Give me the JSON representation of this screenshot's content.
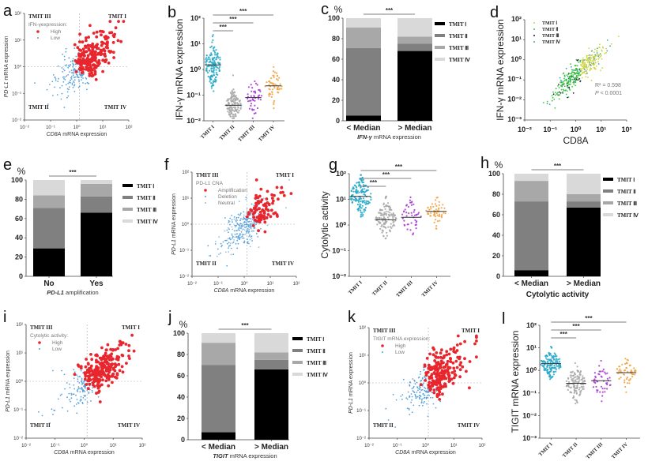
{
  "chart_data": [
    {
      "panel": "a",
      "type": "scatter",
      "style": "quadrant",
      "xlabel_gene": "CD8A",
      "xlabel_rest": " mRNA expression",
      "ylabel_gene": "PD-L1",
      "ylabel_rest": " mRNA expression",
      "x_ticks": [
        "10⁻²",
        "10⁻¹",
        "10⁰",
        "10¹",
        "10²"
      ],
      "xlim_log10": [
        -2,
        2
      ],
      "y_ticks": [
        "10²",
        "10¹",
        "10⁰",
        "10⁻¹",
        "10⁻²"
      ],
      "ylim_log10": [
        -2,
        2
      ],
      "threshold_log10": {
        "x": 0.1,
        "y": 0
      },
      "quadrants": {
        "top_left": "TMIT III",
        "top_right": "TMIT I",
        "bottom_left": "TMIT II",
        "bottom_right": "TMIT IV"
      },
      "legend_title": "IFN-γexpression:",
      "series": [
        {
          "name": "High",
          "color": "#e8262e"
        },
        {
          "name": "Low",
          "color": "#5aa2dc"
        }
      ],
      "distribution": {
        "n": 360,
        "x_log_mean": 0.3,
        "x_log_sd": 0.55,
        "y_log_mean": 0.15,
        "y_log_sd": 0.4,
        "slope": 0.7,
        "seed": 11
      }
    },
    {
      "panel": "b",
      "type": "dot",
      "ylabel": "IFN-γ mRNA expression",
      "y_ticks": [
        "10²",
        "10¹",
        "10⁰",
        "10⁻¹",
        "10⁻²"
      ],
      "ylim_log10": [
        -2,
        2
      ],
      "categories": [
        "TMIT I",
        "TMIT II",
        "TMIT III",
        "TMIT IV"
      ],
      "medians": [
        1.5,
        0.04,
        0.08,
        0.23
      ],
      "log_sd": [
        0.45,
        0.3,
        0.4,
        0.35
      ],
      "n": [
        150,
        130,
        45,
        55
      ],
      "colors": [
        "#2aaac8",
        "#a8a8a8",
        "#a63bd2",
        "#f2a444"
      ],
      "significance": [
        {
          "from": 0,
          "to": 1,
          "label": "***"
        },
        {
          "from": 0,
          "to": 2,
          "label": "***"
        },
        {
          "from": 0,
          "to": 3,
          "label": "***"
        }
      ],
      "seed": 21
    },
    {
      "panel": "c",
      "type": "bar",
      "stacked": true,
      "unit": "%",
      "categories": [
        "< Median",
        "> Median"
      ],
      "xlabel_gene": "IFN-γ",
      "xlabel_rest": " mRNA expression",
      "y_ticks": [
        "0",
        "20",
        "40",
        "60",
        "80",
        "100"
      ],
      "ylim": [
        0,
        100
      ],
      "series": [
        {
          "name": "TMIT Ⅰ",
          "color": "#000000",
          "values": [
            5,
            68
          ]
        },
        {
          "name": "TMIT Ⅱ",
          "color": "#808080",
          "values": [
            66,
            7
          ]
        },
        {
          "name": "TMIT Ⅲ",
          "color": "#a8a8a8",
          "values": [
            20,
            7
          ]
        },
        {
          "name": "TMIT Ⅳ",
          "color": "#d9d9d9",
          "values": [
            9,
            18
          ]
        }
      ],
      "significance": "***"
    },
    {
      "panel": "d",
      "type": "scatter",
      "style": "groups",
      "xlabel": "CD8A",
      "ylabel": "IFN-γ mRNA expression",
      "x_ticks": [
        "10⁻²",
        "10⁻¹",
        "10⁰",
        "10¹",
        "10²"
      ],
      "xlim_log10": [
        -2,
        2
      ],
      "y_ticks": [
        "10²",
        "10¹",
        "10⁰",
        "10⁻¹",
        "10⁻²",
        "10⁻³"
      ],
      "ylim_log10": [
        -3,
        2
      ],
      "series": [
        {
          "name": "TMIT Ⅰ",
          "color": "#cfd23a"
        },
        {
          "name": "TMIT Ⅱ",
          "color": "#38c43c"
        },
        {
          "name": "TMIT Ⅲ",
          "color": "#1c1c3c"
        },
        {
          "name": "TMIT Ⅳ",
          "color": "#3aa6a0"
        }
      ],
      "annotation": {
        "r2": "R² = 0.598",
        "p_sym": "P",
        "p_rest": " < 0.0001"
      },
      "distribution": {
        "n": 360,
        "x_log_mean": 0.1,
        "x_log_sd": 0.55,
        "y_intercept_log": -0.75,
        "slope": 1.15,
        "noise_sd": 0.3,
        "seed": 31
      }
    },
    {
      "panel": "e",
      "type": "bar",
      "stacked": true,
      "unit": "%",
      "categories": [
        "No",
        "Yes"
      ],
      "xlabel_gene": "PD-L1",
      "xlabel_rest": " amplification",
      "y_ticks": [
        "0",
        "20",
        "40",
        "60",
        "80",
        "100"
      ],
      "ylim": [
        0,
        100
      ],
      "series": [
        {
          "name": "TMIT Ⅰ",
          "color": "#000000",
          "values": [
            29,
            66
          ]
        },
        {
          "name": "TMIT Ⅱ",
          "color": "#808080",
          "values": [
            42,
            17
          ]
        },
        {
          "name": "TMIT Ⅲ",
          "color": "#a8a8a8",
          "values": [
            13,
            13
          ]
        },
        {
          "name": "TMIT Ⅳ",
          "color": "#d9d9d9",
          "values": [
            16,
            4
          ]
        }
      ],
      "significance": "***"
    },
    {
      "panel": "f",
      "type": "scatter",
      "style": "quadrant",
      "xlabel_gene": "CD8A",
      "xlabel_rest": " mRNA expression",
      "ylabel_gene": "PD-L1",
      "ylabel_rest": " mRNA expression",
      "x_ticks": [
        "10⁻²",
        "10⁻¹",
        "10⁰",
        "10¹",
        "10²"
      ],
      "xlim_log10": [
        -2,
        2
      ],
      "y_ticks": [
        "10²",
        "10¹",
        "10⁰",
        "10⁻¹",
        "10⁻²"
      ],
      "ylim_log10": [
        -2,
        2
      ],
      "threshold_log10": {
        "x": 0.1,
        "y": 0
      },
      "quadrants": {
        "top_left": "TMIT III",
        "top_right": "TMIT I",
        "bottom_left": "TMIT II",
        "bottom_right": "TMIT IV"
      },
      "legend_title": "PD-L1 CNA",
      "series": [
        {
          "name": "Amplification",
          "color": "#e8262e"
        },
        {
          "name": "Deletion",
          "color": "#5aa2dc"
        },
        {
          "name": "Neutral",
          "color": "#8fc0e6"
        }
      ],
      "distribution": {
        "n": 380,
        "x_log_mean": 0.2,
        "x_log_sd": 0.55,
        "y_log_mean": 0.1,
        "y_log_sd": 0.4,
        "slope": 0.7,
        "seed": 41
      }
    },
    {
      "panel": "g",
      "type": "dot",
      "ylabel": "Cytolytic activity",
      "y_ticks": [
        "10²",
        "10¹",
        "10⁰",
        "10⁻¹",
        "10⁻²"
      ],
      "ylim_log10": [
        -2,
        2
      ],
      "categories": [
        "TMIT I",
        "TMIT II",
        "TMIT III",
        "TMIT IV"
      ],
      "medians": [
        13,
        1.6,
        2,
        3.4
      ],
      "log_sd": [
        0.4,
        0.35,
        0.35,
        0.25
      ],
      "n": [
        150,
        130,
        45,
        55
      ],
      "colors": [
        "#2aaac8",
        "#a8a8a8",
        "#a63bd2",
        "#f2a444"
      ],
      "significance": [
        {
          "from": 0,
          "to": 1,
          "label": "***"
        },
        {
          "from": 0,
          "to": 2,
          "label": "***"
        },
        {
          "from": 0,
          "to": 3,
          "label": "***"
        }
      ],
      "seed": 51
    },
    {
      "panel": "h",
      "type": "bar",
      "stacked": true,
      "unit": "%",
      "categories": [
        "< Median",
        "> Median"
      ],
      "xlabel_gene": "",
      "xlabel_rest": "Cytolytic activity",
      "y_ticks": [
        "0",
        "20",
        "40",
        "60",
        "80",
        "100"
      ],
      "ylim": [
        0,
        100
      ],
      "series": [
        {
          "name": "TMIT Ⅰ",
          "color": "#000000",
          "values": [
            6,
            67
          ]
        },
        {
          "name": "TMIT Ⅱ",
          "color": "#808080",
          "values": [
            67,
            6
          ]
        },
        {
          "name": "TMIT Ⅲ",
          "color": "#a8a8a8",
          "values": [
            20,
            7
          ]
        },
        {
          "name": "TMIT Ⅳ",
          "color": "#d9d9d9",
          "values": [
            7,
            20
          ]
        }
      ],
      "significance": "***"
    },
    {
      "panel": "i",
      "type": "scatter",
      "style": "quadrant",
      "xlabel_gene": "CD8A",
      "xlabel_rest": " mRNA expression",
      "ylabel_gene": "PD-L1",
      "ylabel_rest": " mRNA expression",
      "x_ticks": [
        "10⁻²",
        "10⁻¹",
        "10⁰",
        "10¹",
        "10²"
      ],
      "xlim_log10": [
        -2,
        2
      ],
      "y_ticks": [
        "10²",
        "10¹",
        "10⁰",
        "10⁻¹",
        "10⁻²"
      ],
      "ylim_log10": [
        -2,
        2
      ],
      "threshold_log10": {
        "x": 0.1,
        "y": 0
      },
      "quadrants": {
        "top_left": "TMIT III",
        "top_right": "TMIT I",
        "bottom_left": "TMIT II",
        "bottom_right": "TMIT IV"
      },
      "legend_title": "Cytolytic activity:",
      "series": [
        {
          "name": "High",
          "color": "#e8262e"
        },
        {
          "name": "Low",
          "color": "#5aa2dc"
        }
      ],
      "distribution": {
        "n": 360,
        "x_log_mean": 0.3,
        "x_log_sd": 0.55,
        "y_log_mean": 0.15,
        "y_log_sd": 0.4,
        "slope": 0.7,
        "seed": 61
      }
    },
    {
      "panel": "j",
      "type": "bar",
      "stacked": true,
      "unit": "%",
      "categories": [
        "< Median",
        "> Median"
      ],
      "xlabel_gene": "TIGIT",
      "xlabel_rest": " mRNA expression",
      "y_ticks": [
        "0",
        "20",
        "40",
        "60",
        "80",
        "100"
      ],
      "ylim": [
        0,
        100
      ],
      "series": [
        {
          "name": "TMIT Ⅰ",
          "color": "#000000",
          "values": [
            7,
            66
          ]
        },
        {
          "name": "TMIT Ⅱ",
          "color": "#808080",
          "values": [
            63,
            9
          ]
        },
        {
          "name": "TMIT Ⅲ",
          "color": "#a8a8a8",
          "values": [
            21,
            7
          ]
        },
        {
          "name": "TMIT Ⅳ",
          "color": "#d9d9d9",
          "values": [
            9,
            18
          ]
        }
      ],
      "significance": "***"
    },
    {
      "panel": "k",
      "type": "scatter",
      "style": "quadrant",
      "xlabel_gene": "CD8A",
      "xlabel_rest": " mRNA expression",
      "ylabel_gene": "PD-L1",
      "ylabel_rest": " mRNA expression",
      "x_ticks": [
        "10⁻²",
        "10⁻¹",
        "10⁰",
        "10¹",
        "10²"
      ],
      "xlim_log10": [
        -2,
        2
      ],
      "y_ticks": [
        "10²",
        "10¹",
        "10⁰",
        "10⁻¹",
        "10⁻²"
      ],
      "ylim_log10": [
        -2,
        2
      ],
      "threshold_log10": {
        "x": 0.1,
        "y": 0
      },
      "quadrants": {
        "top_left": "TMIT III",
        "top_right": "TMIT I",
        "bottom_left": "TMIT II",
        "bottom_right": "TMIT IV"
      },
      "legend_title": "TIGIT mRNA expression:",
      "series": [
        {
          "name": "High",
          "color": "#e8262e"
        },
        {
          "name": "Low",
          "color": "#5aa2dc"
        }
      ],
      "distribution": {
        "n": 360,
        "x_log_mean": 0.3,
        "x_log_sd": 0.55,
        "y_log_mean": 0.15,
        "y_log_sd": 0.4,
        "slope": 0.7,
        "seed": 71
      }
    },
    {
      "panel": "l",
      "type": "dot",
      "ylabel": "TIGIT mRNA expression",
      "y_ticks": [
        "10²",
        "10¹",
        "10⁰",
        "10⁻¹",
        "10⁻²",
        "10⁻³"
      ],
      "ylim_log10": [
        -3,
        2
      ],
      "categories": [
        "TMIT I",
        "TMIT II",
        "TMIT III",
        "TMIT IV"
      ],
      "medians": [
        2,
        0.27,
        0.35,
        0.8
      ],
      "log_sd": [
        0.3,
        0.4,
        0.35,
        0.3
      ],
      "n": [
        150,
        130,
        45,
        55
      ],
      "colors": [
        "#2aaac8",
        "#a8a8a8",
        "#a63bd2",
        "#f2a444"
      ],
      "significance": [
        {
          "from": 0,
          "to": 1,
          "label": "***"
        },
        {
          "from": 0,
          "to": 2,
          "label": "***"
        },
        {
          "from": 0,
          "to": 3,
          "label": "***"
        }
      ],
      "seed": 81
    }
  ]
}
